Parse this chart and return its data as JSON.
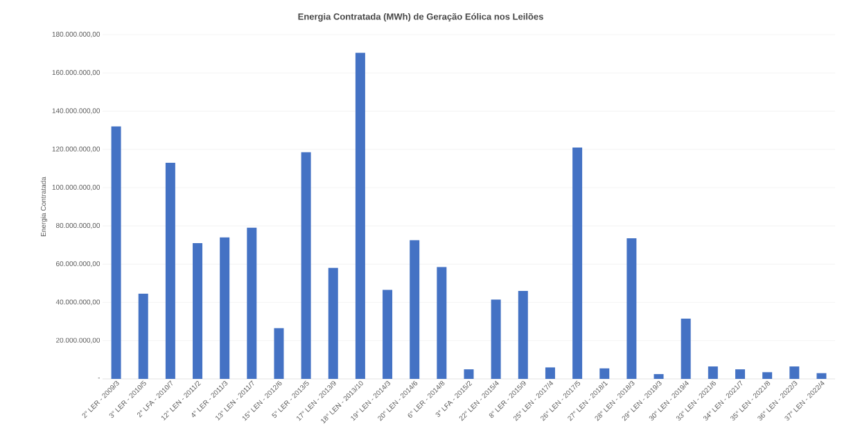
{
  "chart_data": {
    "type": "bar",
    "title": "Energia Contratada (MWh) de Geração Eólica nos Leilões",
    "ylabel": "Energia Contratada",
    "categories": [
      "2° LER - 2009/3",
      "3° LER - 2010/5",
      "2° LFA - 2010/7",
      "12° LEN - 2011/2",
      "4° LER - 2011/3",
      "13° LEN - 2011/7",
      "15° LEN - 2012/6",
      "5° LER - 2013/5",
      "17° LEN - 2013/9",
      "18° LEN - 2013/10",
      "19° LEN - 2014/3",
      "20° LEN - 2014/6",
      "6° LER - 2014/8",
      "3° LFA - 2015/2",
      "22° LEN - 2015/4",
      "8° LER - 2015/9",
      "25° LEN - 2017/4",
      "26° LEN - 2017/5",
      "27° LEN - 2018/1",
      "28° LEN - 2018/3",
      "29° LEN - 2019/3",
      "30° LEN - 2019/4",
      "33° LEN - 2021/6",
      "34° LEN - 2021/7",
      "35° LEN - 2021/8",
      "36° LEN - 2022/3",
      "37° LEN - 2022/4"
    ],
    "values": [
      132000000,
      44500000,
      113000000,
      71000000,
      74000000,
      79000000,
      26500000,
      118500000,
      58000000,
      170500000,
      46500000,
      72500000,
      58500000,
      5000000,
      41500000,
      46000000,
      6000000,
      121000000,
      5500000,
      73500000,
      2500000,
      31500000,
      6500000,
      5000000,
      3500000,
      6500000,
      3000000
    ],
    "color": "#4472c4",
    "ylim": [
      0,
      180000000
    ],
    "yticks": [
      {
        "value": 0,
        "label": "-"
      },
      {
        "value": 20000000,
        "label": "20.000.000,00"
      },
      {
        "value": 40000000,
        "label": "40.000.000,00"
      },
      {
        "value": 60000000,
        "label": "60.000.000,00"
      },
      {
        "value": 80000000,
        "label": "80.000.000,00"
      },
      {
        "value": 100000000,
        "label": "100.000.000,00"
      },
      {
        "value": 120000000,
        "label": "120.000.000,00"
      },
      {
        "value": 140000000,
        "label": "140.000.000,00"
      },
      {
        "value": 160000000,
        "label": "160.000.000,00"
      },
      {
        "value": 180000000,
        "label": "180.000.000,00"
      }
    ],
    "grid": "y"
  }
}
